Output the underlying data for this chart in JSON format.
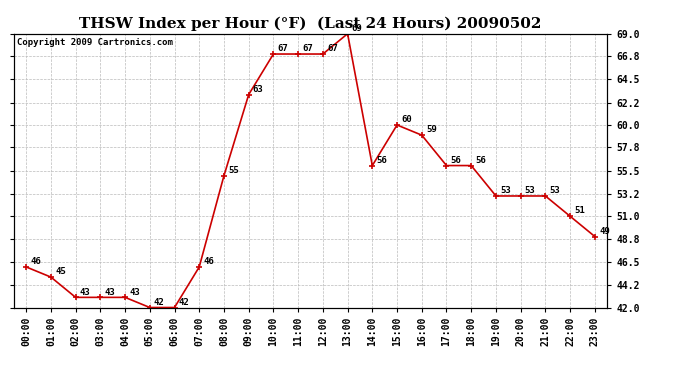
{
  "title": "THSW Index per Hour (°F)  (Last 24 Hours) 20090502",
  "copyright": "Copyright 2009 Cartronics.com",
  "hours": [
    "00:00",
    "01:00",
    "02:00",
    "03:00",
    "04:00",
    "05:00",
    "06:00",
    "07:00",
    "08:00",
    "09:00",
    "10:00",
    "11:00",
    "12:00",
    "13:00",
    "14:00",
    "15:00",
    "16:00",
    "17:00",
    "18:00",
    "19:00",
    "20:00",
    "21:00",
    "22:00",
    "23:00"
  ],
  "values": [
    46,
    45,
    43,
    43,
    43,
    42,
    42,
    46,
    55,
    63,
    67,
    67,
    67,
    69,
    56,
    60,
    59,
    56,
    56,
    53,
    53,
    53,
    51,
    49
  ],
  "line_color": "#cc0000",
  "marker_color": "#cc0000",
  "bg_color": "#ffffff",
  "plot_bg_color": "#ffffff",
  "grid_color": "#bbbbbb",
  "ylim_min": 42.0,
  "ylim_max": 69.0,
  "yticks": [
    42.0,
    44.2,
    46.5,
    48.8,
    51.0,
    53.2,
    55.5,
    57.8,
    60.0,
    62.2,
    64.5,
    66.8,
    69.0
  ],
  "title_fontsize": 11,
  "label_fontsize": 7,
  "annotation_fontsize": 6.5,
  "copyright_fontsize": 6.5
}
